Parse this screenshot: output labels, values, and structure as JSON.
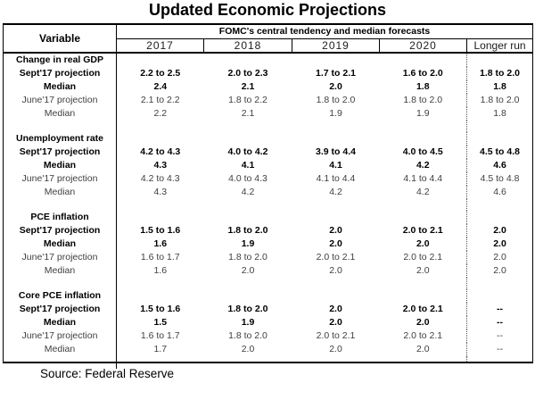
{
  "title": "Updated Economic Projections",
  "source": "Source: Federal Reserve",
  "colors": {
    "text": "#000000",
    "muted_text": "#3f3f3f",
    "background": "#ffffff",
    "border": "#000000"
  },
  "chart_data": {
    "type": "table",
    "title": "Updated Economic Projections",
    "header": {
      "variable_label": "Variable",
      "group_label": "FOMC's central tendency and median forecasts",
      "year_columns": [
        "2017",
        "2018",
        "2019",
        "2020"
      ],
      "longer_run_label": "Longer run"
    },
    "sections": [
      {
        "label": "Change in real GDP",
        "rows": [
          {
            "label": "Sept'17 projection",
            "bold": true,
            "values": [
              "2.2 to 2.5",
              "2.0 to 2.3",
              "1.7 to 2.1",
              "1.6 to 2.0",
              "1.8 to 2.0"
            ]
          },
          {
            "label": "Median",
            "bold": true,
            "values": [
              "2.4",
              "2.1",
              "2.0",
              "1.8",
              "1.8"
            ]
          },
          {
            "label": "June'17 projection",
            "bold": false,
            "values": [
              "2.1 to 2.2",
              "1.8 to 2.2",
              "1.8 to 2.0",
              "1.8 to 2.0",
              "1.8 to 2.0"
            ]
          },
          {
            "label": "Median",
            "bold": false,
            "values": [
              "2.2",
              "2.1",
              "1.9",
              "1.9",
              "1.8"
            ]
          }
        ]
      },
      {
        "label": "Unemployment rate",
        "rows": [
          {
            "label": "Sept'17 projection",
            "bold": true,
            "values": [
              "4.2 to 4.3",
              "4.0 to 4.2",
              "3.9 to 4.4",
              "4.0 to 4.5",
              "4.5 to 4.8"
            ]
          },
          {
            "label": "Median",
            "bold": true,
            "values": [
              "4.3",
              "4.1",
              "4.1",
              "4.2",
              "4.6"
            ]
          },
          {
            "label": "June'17 projection",
            "bold": false,
            "values": [
              "4.2 to 4.3",
              "4.0 to 4.3",
              "4.1 to 4.4",
              "4.1 to 4.4",
              "4.5 to 4.8"
            ]
          },
          {
            "label": "Median",
            "bold": false,
            "values": [
              "4.3",
              "4.2",
              "4.2",
              "4.2",
              "4.6"
            ]
          }
        ]
      },
      {
        "label": "PCE inflation",
        "rows": [
          {
            "label": "Sept'17 projection",
            "bold": true,
            "values": [
              "1.5 to 1.6",
              "1.8 to 2.0",
              "2.0",
              "2.0 to 2.1",
              "2.0"
            ]
          },
          {
            "label": "Median",
            "bold": true,
            "values": [
              "1.6",
              "1.9",
              "2.0",
              "2.0",
              "2.0"
            ]
          },
          {
            "label": "June'17 projection",
            "bold": false,
            "values": [
              "1.6 to 1.7",
              "1.8 to 2.0",
              "2.0 to 2.1",
              "2.0 to 2.1",
              "2.0"
            ]
          },
          {
            "label": "Median",
            "bold": false,
            "values": [
              "1.6",
              "2.0",
              "2.0",
              "2.0",
              "2.0"
            ]
          }
        ]
      },
      {
        "label": "Core PCE inflation",
        "rows": [
          {
            "label": "Sept'17 projection",
            "bold": true,
            "values": [
              "1.5 to 1.6",
              "1.8 to 2.0",
              "2.0",
              "2.0 to 2.1",
              "--"
            ]
          },
          {
            "label": "Median",
            "bold": true,
            "values": [
              "1.5",
              "1.9",
              "2.0",
              "2.0",
              "--"
            ]
          },
          {
            "label": "June'17 projection",
            "bold": false,
            "values": [
              "1.6 to 1.7",
              "1.8 to 2.0",
              "2.0 to 2.1",
              "2.0 to 2.1",
              "--"
            ]
          },
          {
            "label": "Median",
            "bold": false,
            "values": [
              "1.7",
              "2.0",
              "2.0",
              "2.0",
              "--"
            ]
          }
        ]
      }
    ],
    "source": "Source: Federal Reserve"
  }
}
